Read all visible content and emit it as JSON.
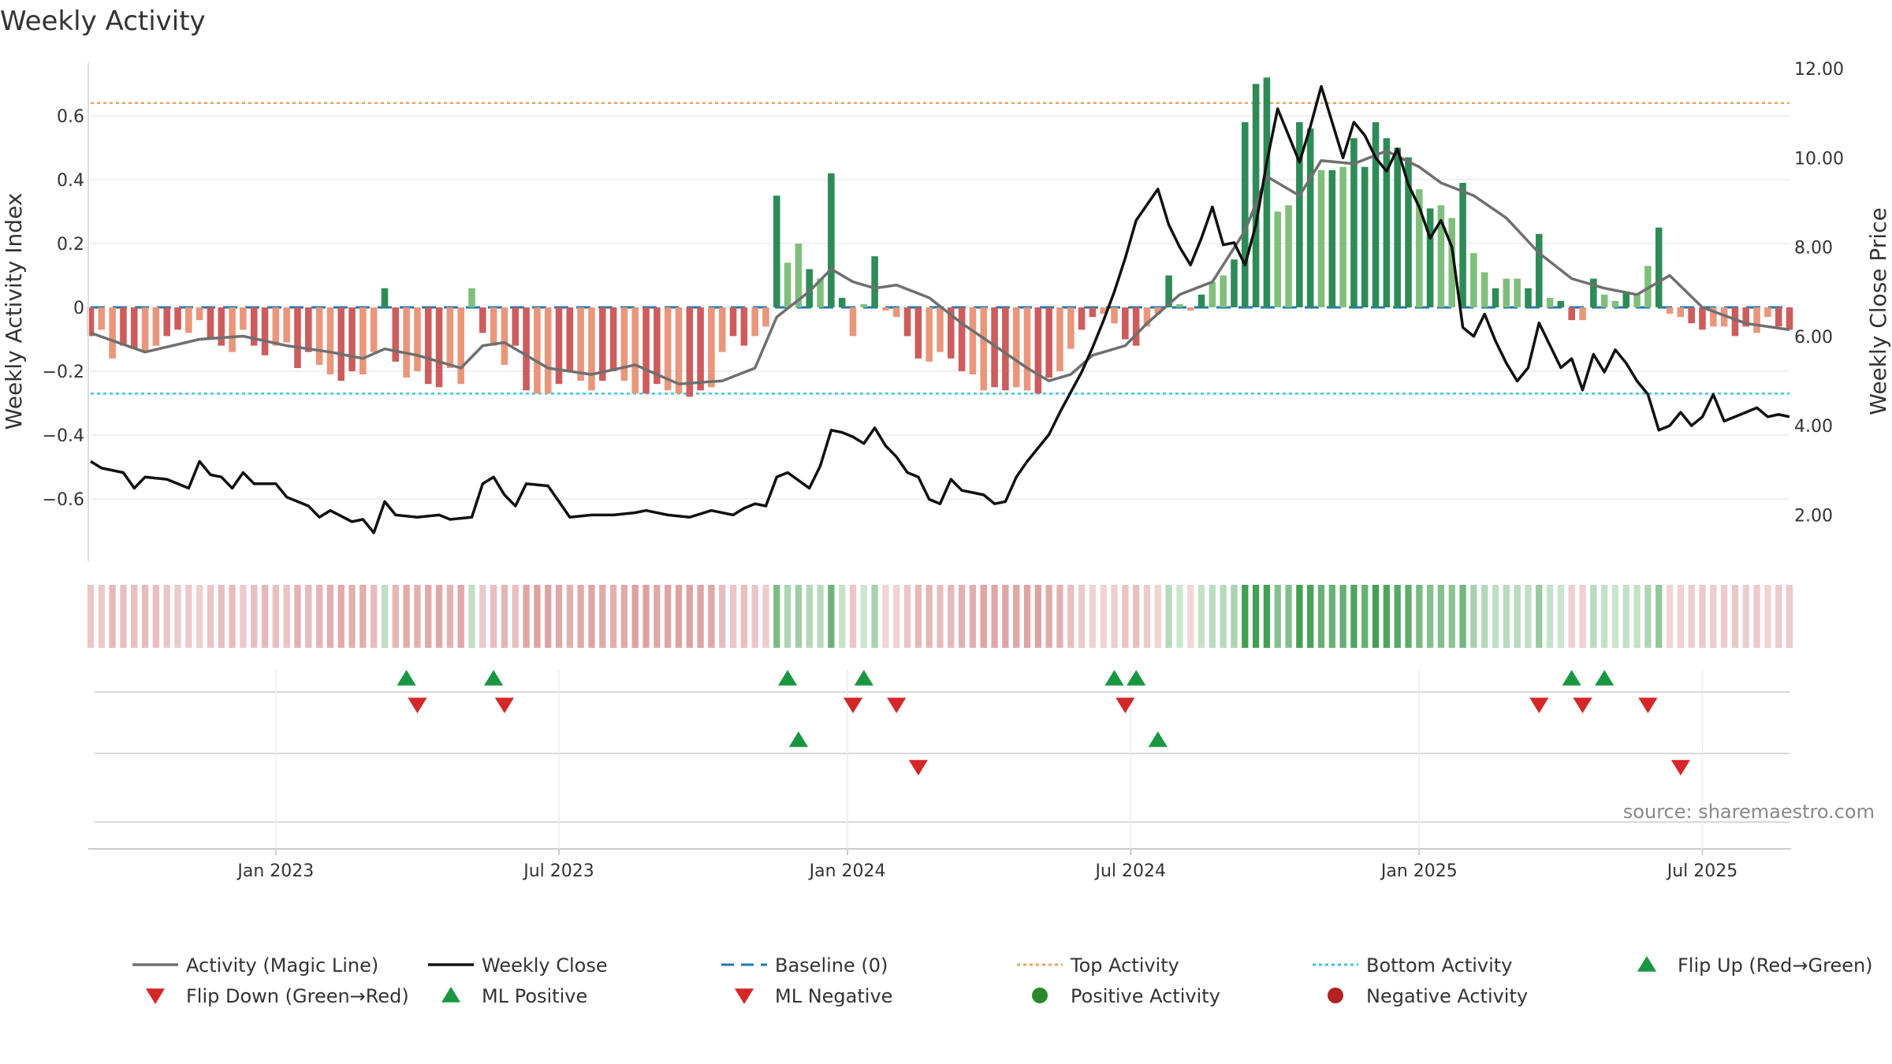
{
  "chart_data": {
    "type": "bar",
    "title": "Weekly Activity",
    "ylabel": "Weekly Activity Index",
    "y2label": "Weekly Close Price",
    "ylim": [
      -0.79,
      0.79
    ],
    "y2lim": [
      1.0,
      12.3
    ],
    "yticks": [
      {
        "v": 0.6,
        "t": "0.6"
      },
      {
        "v": 0.4,
        "t": "0.4"
      },
      {
        "v": 0.2,
        "t": "0.2"
      },
      {
        "v": 0,
        "t": "0"
      },
      {
        "v": -0.2,
        "t": "−0.2"
      },
      {
        "v": -0.4,
        "t": "−0.4"
      },
      {
        "v": -0.6,
        "t": "−0.6"
      }
    ],
    "y2ticks": [
      {
        "v": 12,
        "t": "12.00"
      },
      {
        "v": 10,
        "t": "10.00"
      },
      {
        "v": 8,
        "t": "8.00"
      },
      {
        "v": 6,
        "t": "6.00"
      },
      {
        "v": 4,
        "t": "4.00"
      },
      {
        "v": 2,
        "t": "2.00"
      }
    ],
    "xticks": [
      {
        "w": 17,
        "t": "Jan 2023"
      },
      {
        "w": 43,
        "t": "Jul 2023"
      },
      {
        "w": 69.5,
        "t": "Jan 2024"
      },
      {
        "w": 95.5,
        "t": "Jul 2024"
      },
      {
        "w": 122,
        "t": "Jan 2025"
      },
      {
        "w": 148,
        "t": "Jul 2025"
      }
    ],
    "weeks": 157,
    "top_activity": 0.64,
    "bottom_activity": -0.27,
    "baseline": 0,
    "activity": [
      -0.09,
      -0.07,
      -0.16,
      -0.12,
      -0.13,
      -0.14,
      -0.12,
      -0.09,
      -0.07,
      -0.08,
      -0.04,
      -0.1,
      -0.12,
      -0.14,
      -0.07,
      -0.12,
      -0.15,
      -0.12,
      -0.11,
      -0.19,
      -0.14,
      -0.18,
      -0.21,
      -0.23,
      -0.2,
      -0.21,
      -0.14,
      0.06,
      -0.17,
      -0.22,
      -0.2,
      -0.24,
      -0.25,
      -0.19,
      -0.24,
      0.06,
      -0.08,
      -0.12,
      -0.18,
      -0.12,
      -0.26,
      -0.27,
      -0.27,
      -0.24,
      -0.2,
      -0.23,
      -0.26,
      -0.23,
      -0.2,
      -0.23,
      -0.27,
      -0.27,
      -0.24,
      -0.26,
      -0.27,
      -0.28,
      -0.26,
      -0.25,
      -0.14,
      -0.09,
      -0.12,
      -0.09,
      -0.06,
      0.35,
      0.14,
      0.2,
      0.12,
      0.09,
      0.42,
      0.03,
      -0.09,
      0.01,
      0.16,
      -0.01,
      -0.03,
      -0.09,
      -0.16,
      -0.17,
      -0.14,
      -0.16,
      -0.2,
      -0.21,
      -0.26,
      -0.25,
      -0.26,
      -0.25,
      -0.26,
      -0.27,
      -0.22,
      -0.2,
      -0.13,
      -0.07,
      -0.03,
      -0.02,
      -0.05,
      -0.1,
      -0.12,
      -0.06,
      -0.02,
      0.1,
      0.01,
      -0.01,
      0.04,
      0.08,
      0.1,
      0.15,
      0.58,
      0.7,
      0.72,
      0.3,
      0.32,
      0.58,
      0.56,
      0.43,
      0.43,
      0.44,
      0.53,
      0.44,
      0.58,
      0.53,
      0.5,
      0.47,
      0.37,
      0.31,
      0.32,
      0.28,
      0.39,
      0.17,
      0.11,
      0.06,
      0.09,
      0.09,
      0.06,
      0.23,
      0.03,
      0.02,
      -0.04,
      -0.04,
      0.09,
      0.04,
      0.02,
      0.05,
      0.04,
      0.13,
      0.25,
      -0.02,
      -0.03,
      -0.05,
      -0.07,
      -0.06,
      -0.06,
      -0.09,
      -0.06,
      -0.08,
      -0.03,
      -0.06,
      -0.07
    ],
    "magic_line": [
      [
        0,
        -0.08
      ],
      [
        5,
        -0.14
      ],
      [
        10,
        -0.1
      ],
      [
        14,
        -0.09
      ],
      [
        18,
        -0.12
      ],
      [
        22,
        -0.14
      ],
      [
        25,
        -0.16
      ],
      [
        27,
        -0.13
      ],
      [
        30,
        -0.15
      ],
      [
        34,
        -0.19
      ],
      [
        36,
        -0.12
      ],
      [
        38,
        -0.11
      ],
      [
        42,
        -0.19
      ],
      [
        46,
        -0.21
      ],
      [
        50,
        -0.18
      ],
      [
        54,
        -0.24
      ],
      [
        58,
        -0.23
      ],
      [
        61,
        -0.19
      ],
      [
        63,
        -0.03
      ],
      [
        66,
        0.05
      ],
      [
        68,
        0.12
      ],
      [
        70,
        0.08
      ],
      [
        72,
        0.06
      ],
      [
        74,
        0.07
      ],
      [
        77,
        0.03
      ],
      [
        80,
        -0.05
      ],
      [
        83,
        -0.12
      ],
      [
        86,
        -0.19
      ],
      [
        88,
        -0.23
      ],
      [
        90,
        -0.21
      ],
      [
        92,
        -0.15
      ],
      [
        95,
        -0.12
      ],
      [
        97,
        -0.05
      ],
      [
        100,
        0.04
      ],
      [
        103,
        0.08
      ],
      [
        106,
        0.24
      ],
      [
        108,
        0.41
      ],
      [
        111,
        0.35
      ],
      [
        113,
        0.46
      ],
      [
        116,
        0.45
      ],
      [
        119,
        0.49
      ],
      [
        122,
        0.44
      ],
      [
        124,
        0.39
      ],
      [
        127,
        0.35
      ],
      [
        130,
        0.28
      ],
      [
        133,
        0.17
      ],
      [
        136,
        0.09
      ],
      [
        139,
        0.06
      ],
      [
        142,
        0.04
      ],
      [
        145,
        0.1
      ],
      [
        148,
        0.0
      ],
      [
        152,
        -0.05
      ],
      [
        156,
        -0.07
      ]
    ],
    "weekly_close": [
      [
        0,
        3.2
      ],
      [
        1,
        3.05
      ],
      [
        3,
        2.95
      ],
      [
        4,
        2.6
      ],
      [
        5,
        2.85
      ],
      [
        7,
        2.8
      ],
      [
        9,
        2.6
      ],
      [
        10,
        3.2
      ],
      [
        11,
        2.9
      ],
      [
        12,
        2.85
      ],
      [
        13,
        2.6
      ],
      [
        14,
        2.95
      ],
      [
        15,
        2.7
      ],
      [
        17,
        2.7
      ],
      [
        18,
        2.4
      ],
      [
        20,
        2.2
      ],
      [
        21,
        1.95
      ],
      [
        22,
        2.1
      ],
      [
        24,
        1.85
      ],
      [
        25,
        1.9
      ],
      [
        26,
        1.6
      ],
      [
        27,
        2.3
      ],
      [
        28,
        2.0
      ],
      [
        30,
        1.95
      ],
      [
        32,
        2.0
      ],
      [
        33,
        1.9
      ],
      [
        35,
        1.95
      ],
      [
        36,
        2.7
      ],
      [
        37,
        2.85
      ],
      [
        38,
        2.45
      ],
      [
        39,
        2.2
      ],
      [
        40,
        2.7
      ],
      [
        42,
        2.65
      ],
      [
        44,
        1.95
      ],
      [
        46,
        2.0
      ],
      [
        48,
        2.0
      ],
      [
        50,
        2.05
      ],
      [
        51,
        2.1
      ],
      [
        53,
        2.0
      ],
      [
        55,
        1.95
      ],
      [
        57,
        2.1
      ],
      [
        59,
        2.0
      ],
      [
        60,
        2.15
      ],
      [
        61,
        2.25
      ],
      [
        62,
        2.2
      ],
      [
        63,
        2.85
      ],
      [
        64,
        2.95
      ],
      [
        66,
        2.6
      ],
      [
        67,
        3.1
      ],
      [
        68,
        3.9
      ],
      [
        69,
        3.85
      ],
      [
        70,
        3.75
      ],
      [
        71,
        3.6
      ],
      [
        72,
        3.95
      ],
      [
        73,
        3.55
      ],
      [
        74,
        3.3
      ],
      [
        75,
        2.95
      ],
      [
        76,
        2.85
      ],
      [
        77,
        2.35
      ],
      [
        78,
        2.25
      ],
      [
        79,
        2.8
      ],
      [
        80,
        2.55
      ],
      [
        81,
        2.5
      ],
      [
        82,
        2.45
      ],
      [
        83,
        2.25
      ],
      [
        84,
        2.3
      ],
      [
        85,
        2.85
      ],
      [
        86,
        3.2
      ],
      [
        87,
        3.5
      ],
      [
        88,
        3.8
      ],
      [
        89,
        4.3
      ],
      [
        90,
        4.75
      ],
      [
        91,
        5.2
      ],
      [
        92,
        5.75
      ],
      [
        93,
        6.35
      ],
      [
        94,
        7.0
      ],
      [
        95,
        7.75
      ],
      [
        96,
        8.6
      ],
      [
        97,
        8.95
      ],
      [
        98,
        9.3
      ],
      [
        99,
        8.5
      ],
      [
        100,
        8.0
      ],
      [
        101,
        7.6
      ],
      [
        102,
        8.2
      ],
      [
        103,
        8.9
      ],
      [
        104,
        8.05
      ],
      [
        105,
        8.1
      ],
      [
        106,
        7.6
      ],
      [
        107,
        8.5
      ],
      [
        108,
        9.9
      ],
      [
        109,
        11.1
      ],
      [
        110,
        10.5
      ],
      [
        111,
        9.9
      ],
      [
        112,
        10.7
      ],
      [
        113,
        11.6
      ],
      [
        114,
        10.8
      ],
      [
        115,
        10.0
      ],
      [
        116,
        10.8
      ],
      [
        117,
        10.5
      ],
      [
        118,
        10.0
      ],
      [
        119,
        9.7
      ],
      [
        120,
        10.2
      ],
      [
        121,
        9.4
      ],
      [
        122,
        8.9
      ],
      [
        123,
        8.2
      ],
      [
        124,
        8.6
      ],
      [
        125,
        8.0
      ],
      [
        126,
        6.2
      ],
      [
        127,
        6.0
      ],
      [
        128,
        6.5
      ],
      [
        129,
        5.9
      ],
      [
        130,
        5.4
      ],
      [
        131,
        5.0
      ],
      [
        132,
        5.3
      ],
      [
        133,
        6.3
      ],
      [
        134,
        5.8
      ],
      [
        135,
        5.3
      ],
      [
        136,
        5.5
      ],
      [
        137,
        4.8
      ],
      [
        138,
        5.6
      ],
      [
        139,
        5.2
      ],
      [
        140,
        5.7
      ],
      [
        141,
        5.4
      ],
      [
        142,
        5.0
      ],
      [
        143,
        4.7
      ],
      [
        144,
        3.9
      ],
      [
        145,
        4.0
      ],
      [
        146,
        4.3
      ],
      [
        147,
        4.0
      ],
      [
        148,
        4.2
      ],
      [
        149,
        4.7
      ],
      [
        150,
        4.1
      ],
      [
        151,
        4.2
      ],
      [
        152,
        4.3
      ],
      [
        153,
        4.4
      ],
      [
        154,
        4.2
      ],
      [
        155,
        4.25
      ],
      [
        156,
        4.2
      ]
    ],
    "strip_values": [
      -0.09,
      -0.07,
      -0.16,
      -0.12,
      -0.13,
      -0.14,
      -0.12,
      -0.09,
      -0.07,
      -0.08,
      -0.04,
      -0.1,
      -0.12,
      -0.14,
      -0.07,
      -0.12,
      -0.15,
      -0.12,
      -0.11,
      -0.19,
      -0.14,
      -0.18,
      -0.21,
      -0.23,
      -0.2,
      -0.21,
      -0.14,
      0.06,
      -0.17,
      -0.22,
      -0.2,
      -0.24,
      -0.25,
      -0.19,
      -0.24,
      0.06,
      -0.08,
      -0.12,
      -0.18,
      -0.12,
      -0.26,
      -0.27,
      -0.27,
      -0.24,
      -0.2,
      -0.23,
      -0.26,
      -0.23,
      -0.2,
      -0.23,
      -0.27,
      -0.27,
      -0.24,
      -0.26,
      -0.27,
      -0.28,
      -0.26,
      -0.25,
      -0.14,
      -0.09,
      -0.12,
      -0.09,
      -0.06,
      0.35,
      0.14,
      0.2,
      0.12,
      0.09,
      0.42,
      0.03,
      -0.09,
      0.01,
      0.16,
      -0.01,
      -0.03,
      -0.09,
      -0.16,
      -0.17,
      -0.14,
      -0.16,
      -0.2,
      -0.21,
      -0.26,
      -0.25,
      -0.26,
      -0.25,
      -0.26,
      -0.27,
      -0.22,
      -0.2,
      -0.13,
      -0.07,
      -0.03,
      -0.02,
      -0.05,
      -0.1,
      -0.12,
      -0.06,
      -0.02,
      0.1,
      0.01,
      -0.01,
      0.04,
      0.08,
      0.1,
      0.15,
      0.58,
      0.7,
      0.72,
      0.3,
      0.32,
      0.58,
      0.56,
      0.43,
      0.43,
      0.44,
      0.53,
      0.44,
      0.58,
      0.53,
      0.5,
      0.47,
      0.37,
      0.31,
      0.32,
      0.28,
      0.39,
      0.17,
      0.11,
      0.06,
      0.09,
      0.09,
      0.06,
      0.23,
      0.03,
      0.02,
      -0.04,
      -0.04,
      0.09,
      0.04,
      0.02,
      0.05,
      0.04,
      0.13,
      0.25,
      -0.02,
      -0.03,
      -0.05,
      -0.07,
      -0.06,
      -0.06,
      -0.09,
      -0.06,
      -0.08,
      -0.03,
      -0.06,
      -0.07
    ],
    "flip_up_weeks": [
      29,
      37,
      64,
      71,
      94,
      96,
      136,
      139
    ],
    "flip_down_weeks": [
      30,
      38,
      70,
      74,
      95,
      133,
      137,
      143
    ],
    "ml_positive_weeks": [
      65,
      98
    ],
    "ml_negative_weeks": [
      76,
      146
    ],
    "legend": [
      {
        "label": "Activity (Magic Line)",
        "kind": "line",
        "color": "#6f6f6f"
      },
      {
        "label": "Weekly Close",
        "kind": "line",
        "color": "#111111"
      },
      {
        "label": "Baseline (0)",
        "kind": "dashed",
        "color": "#1f77b4"
      },
      {
        "label": "Top Activity",
        "kind": "dotted",
        "color": "#f0a060"
      },
      {
        "label": "Bottom Activity",
        "kind": "dotted",
        "color": "#3cc8d8"
      },
      {
        "label": "Flip Up (Red→Green)",
        "kind": "tri-up",
        "color": "#1a9641"
      },
      {
        "label": "Flip Down (Green→Red)",
        "kind": "tri-down",
        "color": "#d62728"
      },
      {
        "label": "ML Positive",
        "kind": "tri-up",
        "color": "#1a9641"
      },
      {
        "label": "ML Negative",
        "kind": "tri-down",
        "color": "#d62728"
      },
      {
        "label": "Positive Activity",
        "kind": "dot",
        "color": "#2a8a2a"
      },
      {
        "label": "Negative Activity",
        "kind": "dot",
        "color": "#b22222"
      }
    ],
    "source": "source: sharemaestro.com"
  },
  "colors": {
    "pos_strong": "#2e8b57",
    "pos_light": "#7fbf7b",
    "neg_strong": "#cd5c5c",
    "neg_light": "#e9967a",
    "magic": "#6f6f6f",
    "close": "#111111",
    "baseline": "#1f77b4",
    "top": "#f0a060",
    "bottom": "#3cc8d8",
    "up": "#1a9641",
    "down": "#d62728"
  }
}
